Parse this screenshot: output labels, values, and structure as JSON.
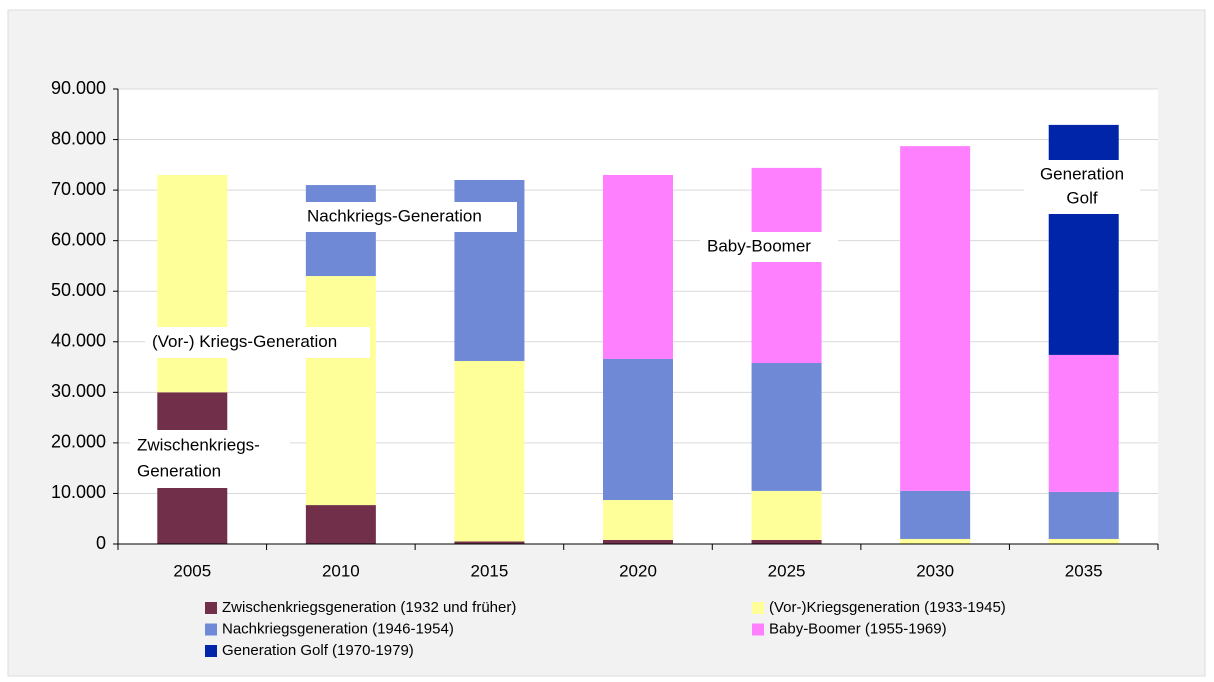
{
  "chart_data": {
    "type": "stacked_bar",
    "categories": [
      "2005",
      "2010",
      "2015",
      "2020",
      "2025",
      "2030",
      "2035"
    ],
    "series": [
      {
        "name": "Zwischenkriegsgeneration (1932 und früher)",
        "color": "#722f4a",
        "values": [
          30000,
          7700,
          500,
          800,
          800,
          0,
          0
        ]
      },
      {
        "name": "(Vor-)Kriegsgeneration (1933-1945)",
        "color": "#ffff99",
        "values": [
          43000,
          45300,
          35700,
          7900,
          9700,
          1000,
          1000
        ]
      },
      {
        "name": "Nachkriegsgeneration (1946-1954)",
        "color": "#6f89d6",
        "values": [
          0,
          18000,
          35800,
          27900,
          25300,
          9500,
          9300
        ]
      },
      {
        "name": "Baby-Boomer (1955-1969)",
        "color": "#ff80ff",
        "values": [
          0,
          0,
          0,
          36400,
          38600,
          68200,
          27100
        ]
      },
      {
        "name": "Generation Golf (1970-1979)",
        "color": "#0025a8",
        "values": [
          0,
          0,
          0,
          0,
          0,
          0,
          45500
        ]
      }
    ],
    "ylim": [
      0,
      90000
    ],
    "yticks": [
      0,
      {
        "value": 10000,
        "label": "10.000"
      },
      {
        "value": 20000,
        "label": "20.000"
      },
      {
        "value": 30000,
        "label": "30.000"
      },
      {
        "value": 40000,
        "label": "40.000"
      },
      {
        "value": 50000,
        "label": "50.000"
      },
      {
        "value": 60000,
        "label": "60.000"
      },
      {
        "value": 70000,
        "label": "70.000"
      },
      {
        "value": 80000,
        "label": "80.000"
      },
      {
        "value": 90000,
        "label": "90.000"
      }
    ],
    "grid": true,
    "annotations": [
      [
        "(Vor-) Kriegs-Generation"
      ],
      [
        "Zwischenkriegs-",
        "Generation"
      ],
      [
        "Nachkriegs-Generation"
      ],
      [
        "Baby-Boomer"
      ],
      [
        "Generation",
        "Golf"
      ]
    ]
  }
}
